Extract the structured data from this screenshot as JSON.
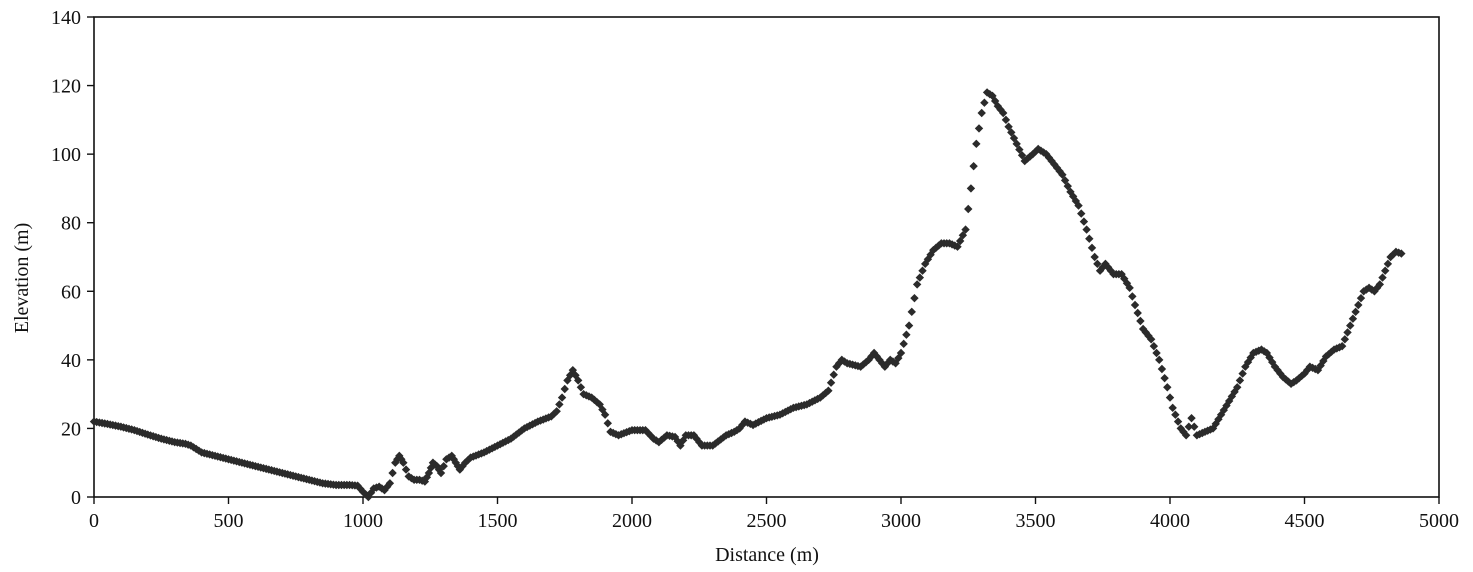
{
  "chart_data": {
    "type": "scatter",
    "title": "",
    "xlabel": "Distance (m)",
    "ylabel": "Elevation (m)",
    "xlim": [
      0,
      5000
    ],
    "ylim": [
      0,
      140
    ],
    "xticks": [
      "0",
      "500",
      "1000",
      "1500",
      "2000",
      "2500",
      "3000",
      "3500",
      "4000",
      "4500",
      "5000"
    ],
    "yticks": [
      "0",
      "20",
      "40",
      "60",
      "80",
      "100",
      "120",
      "140"
    ],
    "grid": false,
    "marker": "diamond",
    "marker_color": "#2b2b2b",
    "series": [
      {
        "points": [
          [
            0,
            22
          ],
          [
            50,
            21.3
          ],
          [
            100,
            20.5
          ],
          [
            150,
            19.5
          ],
          [
            200,
            18.2
          ],
          [
            250,
            17
          ],
          [
            300,
            16
          ],
          [
            340,
            15.5
          ],
          [
            360,
            15
          ],
          [
            400,
            13
          ],
          [
            450,
            12
          ],
          [
            500,
            11
          ],
          [
            550,
            10
          ],
          [
            600,
            9
          ],
          [
            650,
            8
          ],
          [
            700,
            7
          ],
          [
            750,
            6
          ],
          [
            800,
            5
          ],
          [
            850,
            4
          ],
          [
            900,
            3.5
          ],
          [
            950,
            3.5
          ],
          [
            980,
            3.3
          ],
          [
            1000,
            1.5
          ],
          [
            1020,
            0
          ],
          [
            1040,
            2.5
          ],
          [
            1060,
            3
          ],
          [
            1080,
            2
          ],
          [
            1100,
            4
          ],
          [
            1120,
            10
          ],
          [
            1135,
            12
          ],
          [
            1150,
            10
          ],
          [
            1170,
            6
          ],
          [
            1190,
            5
          ],
          [
            1210,
            5
          ],
          [
            1230,
            4.5
          ],
          [
            1245,
            7
          ],
          [
            1260,
            10
          ],
          [
            1275,
            9
          ],
          [
            1290,
            7
          ],
          [
            1310,
            11
          ],
          [
            1330,
            12
          ],
          [
            1345,
            10
          ],
          [
            1360,
            8
          ],
          [
            1380,
            10
          ],
          [
            1400,
            11.5
          ],
          [
            1450,
            13
          ],
          [
            1500,
            15
          ],
          [
            1550,
            17
          ],
          [
            1600,
            20
          ],
          [
            1650,
            22
          ],
          [
            1700,
            23.5
          ],
          [
            1720,
            25
          ],
          [
            1740,
            29
          ],
          [
            1760,
            34
          ],
          [
            1780,
            37
          ],
          [
            1800,
            34
          ],
          [
            1820,
            30
          ],
          [
            1850,
            29
          ],
          [
            1880,
            27
          ],
          [
            1900,
            24
          ],
          [
            1920,
            19
          ],
          [
            1950,
            18
          ],
          [
            2000,
            19.5
          ],
          [
            2050,
            19.5
          ],
          [
            2080,
            17
          ],
          [
            2100,
            16
          ],
          [
            2130,
            18
          ],
          [
            2160,
            17.5
          ],
          [
            2180,
            15
          ],
          [
            2200,
            18
          ],
          [
            2230,
            18
          ],
          [
            2260,
            15
          ],
          [
            2300,
            15
          ],
          [
            2350,
            18
          ],
          [
            2380,
            19
          ],
          [
            2400,
            20
          ],
          [
            2420,
            22
          ],
          [
            2450,
            21
          ],
          [
            2500,
            23
          ],
          [
            2550,
            24
          ],
          [
            2600,
            26
          ],
          [
            2650,
            27
          ],
          [
            2700,
            29
          ],
          [
            2730,
            31
          ],
          [
            2760,
            38
          ],
          [
            2780,
            40
          ],
          [
            2800,
            39
          ],
          [
            2850,
            38
          ],
          [
            2880,
            40
          ],
          [
            2900,
            42
          ],
          [
            2920,
            40
          ],
          [
            2940,
            38
          ],
          [
            2960,
            40
          ],
          [
            2980,
            39
          ],
          [
            3000,
            42
          ],
          [
            3030,
            50
          ],
          [
            3060,
            62
          ],
          [
            3090,
            68
          ],
          [
            3120,
            72
          ],
          [
            3150,
            74
          ],
          [
            3180,
            74
          ],
          [
            3210,
            73
          ],
          [
            3240,
            78
          ],
          [
            3260,
            90
          ],
          [
            3280,
            103
          ],
          [
            3300,
            112
          ],
          [
            3320,
            118
          ],
          [
            3340,
            117
          ],
          [
            3360,
            114
          ],
          [
            3380,
            112
          ],
          [
            3400,
            108
          ],
          [
            3430,
            103
          ],
          [
            3460,
            98
          ],
          [
            3490,
            100
          ],
          [
            3510,
            101.5
          ],
          [
            3540,
            100
          ],
          [
            3570,
            97
          ],
          [
            3600,
            94
          ],
          [
            3630,
            89
          ],
          [
            3660,
            85
          ],
          [
            3690,
            78
          ],
          [
            3720,
            70
          ],
          [
            3740,
            66
          ],
          [
            3760,
            68
          ],
          [
            3790,
            65
          ],
          [
            3820,
            65
          ],
          [
            3850,
            61
          ],
          [
            3870,
            56
          ],
          [
            3900,
            49
          ],
          [
            3930,
            46
          ],
          [
            3960,
            40
          ],
          [
            3990,
            32
          ],
          [
            4010,
            26
          ],
          [
            4040,
            20
          ],
          [
            4060,
            18
          ],
          [
            4080,
            23
          ],
          [
            4100,
            18
          ],
          [
            4130,
            19
          ],
          [
            4160,
            20
          ],
          [
            4190,
            24
          ],
          [
            4220,
            28
          ],
          [
            4250,
            32
          ],
          [
            4280,
            38
          ],
          [
            4310,
            42
          ],
          [
            4340,
            43
          ],
          [
            4360,
            42
          ],
          [
            4390,
            38
          ],
          [
            4420,
            35
          ],
          [
            4450,
            33
          ],
          [
            4470,
            34
          ],
          [
            4500,
            36
          ],
          [
            4520,
            38
          ],
          [
            4550,
            37
          ],
          [
            4580,
            41
          ],
          [
            4610,
            43
          ],
          [
            4640,
            44
          ],
          [
            4670,
            50
          ],
          [
            4700,
            56
          ],
          [
            4720,
            60
          ],
          [
            4740,
            61
          ],
          [
            4760,
            60
          ],
          [
            4780,
            62
          ],
          [
            4800,
            66
          ],
          [
            4820,
            70
          ],
          [
            4840,
            71.5
          ],
          [
            4860,
            71
          ]
        ]
      }
    ]
  }
}
